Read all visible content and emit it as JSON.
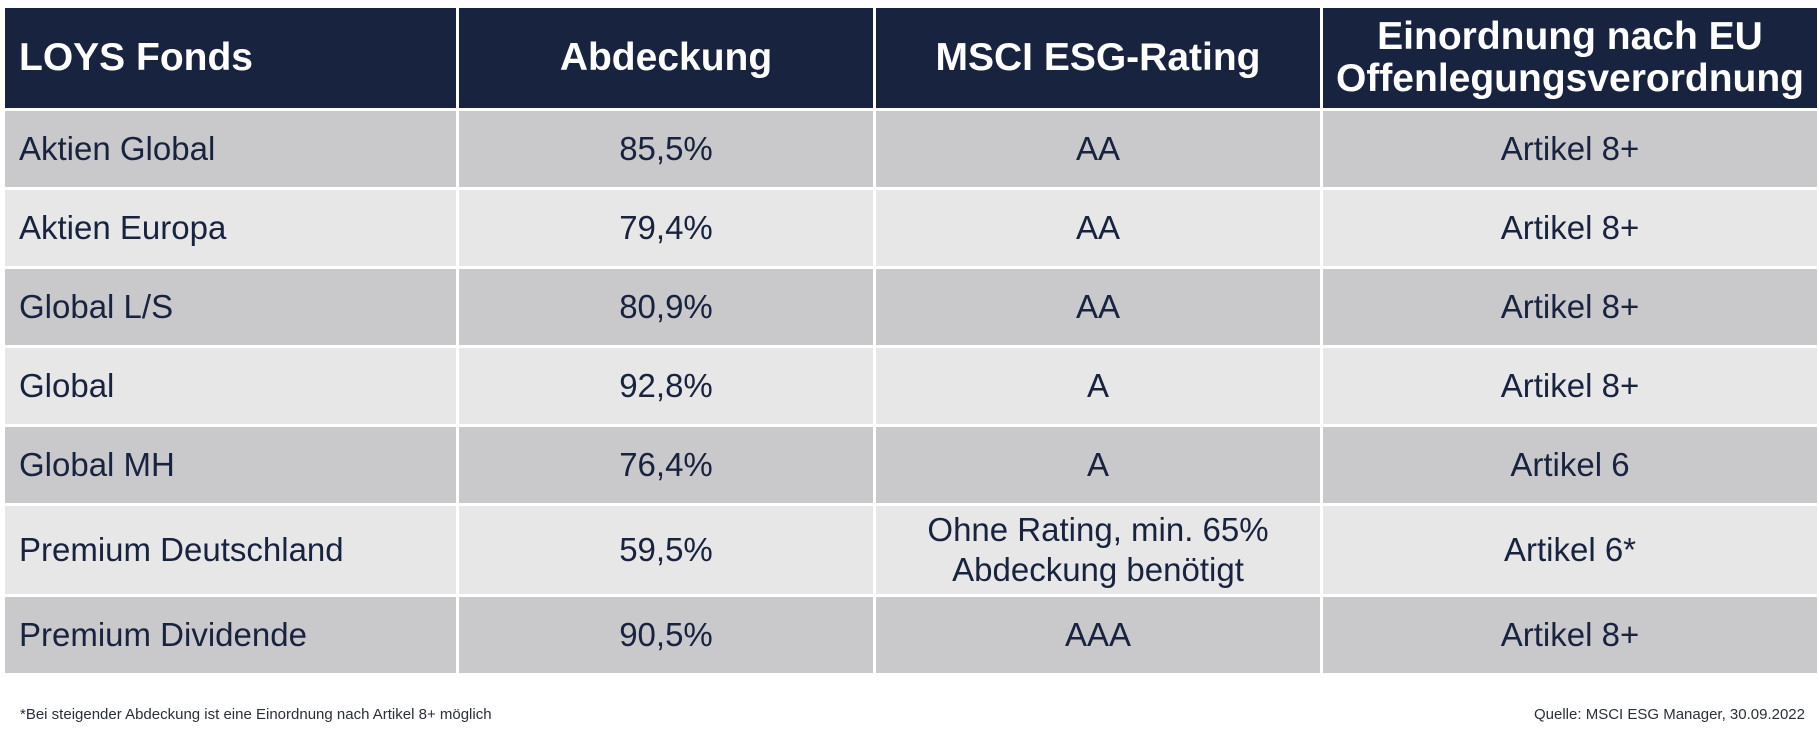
{
  "table": {
    "headers": [
      "LOYS Fonds",
      "Abdeckung",
      "MSCI ESG-Rating",
      "Einordnung nach EU Offenlegungsverordnung"
    ],
    "rows": [
      {
        "fund": "Aktien Global",
        "coverage": "85,5%",
        "rating": "AA",
        "classification": "Artikel 8+"
      },
      {
        "fund": "Aktien Europa",
        "coverage": "79,4%",
        "rating": "AA",
        "classification": "Artikel 8+"
      },
      {
        "fund": "Global L/S",
        "coverage": "80,9%",
        "rating": "AA",
        "classification": "Artikel 8+"
      },
      {
        "fund": "Global",
        "coverage": "92,8%",
        "rating": "A",
        "classification": "Artikel 8+"
      },
      {
        "fund": "Global MH",
        "coverage": "76,4%",
        "rating": "A",
        "classification": "Artikel 6"
      },
      {
        "fund": "Premium Deutschland",
        "coverage": "59,5%",
        "rating": "Ohne Rating, min. 65% Abdeckung benötigt",
        "classification": "Artikel 6*"
      },
      {
        "fund": "Premium Dividende",
        "coverage": "90,5%",
        "rating": "AAA",
        "classification": "Artikel 8+"
      }
    ]
  },
  "footer": {
    "note": "*Bei steigender Abdeckung ist eine Einordnung nach Artikel 8+ möglich",
    "source": "Quelle: MSCI ESG Manager, 30.09.2022"
  },
  "colors": {
    "header_bg": "#17233f",
    "row_dark": "#c9c9cb",
    "row_light": "#e6e7e6",
    "text": "#17233f"
  }
}
